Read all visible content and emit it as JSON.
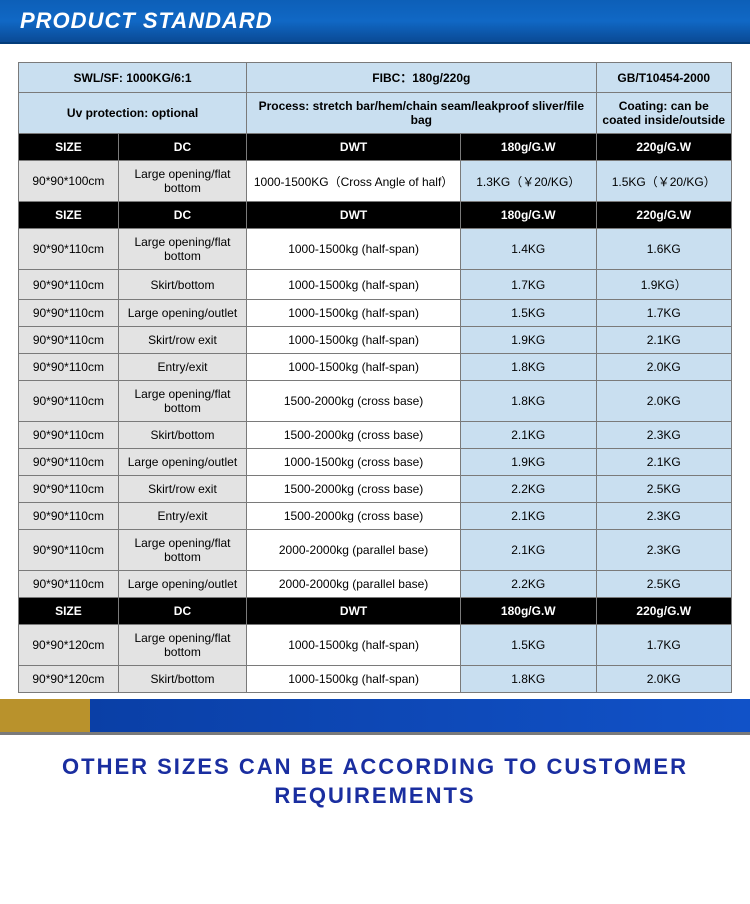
{
  "title": "PRODUCT STANDARD",
  "topHeader": {
    "col1": "SWL/SF: 1000KG/6:1",
    "col2": "FIBC：180g/220g",
    "col3": "GB/T10454-2000"
  },
  "subHeader": {
    "col1": "Uv protection: optional",
    "col2": "Process: stretch bar/hem/chain seam/leakproof sliver/file bag",
    "col3": "Coating: can be coated inside/outside"
  },
  "colHeaders": {
    "size": "SIZE",
    "dc": "DC",
    "dwt": "DWT",
    "w180": "180g/G.W",
    "w220": "220g/G.W"
  },
  "section1": [
    {
      "size": "90*90*100cm",
      "dc": "Large opening/flat bottom",
      "dwt": "1000-1500KG（Cross Angle of half）",
      "w180": "1.3KG（￥20/KG）",
      "w220": "1.5KG（￥20/KG）"
    }
  ],
  "section2": [
    {
      "size": "90*90*110cm",
      "dc": "Large opening/flat bottom",
      "dwt": "1000-1500kg (half-span)",
      "w180": "1.4KG",
      "w220": "1.6KG"
    },
    {
      "size": "90*90*110cm",
      "dc": "Skirt/bottom",
      "dwt": "1000-1500kg (half-span)",
      "w180": "1.7KG",
      "w220": "1.9KG）"
    },
    {
      "size": "90*90*110cm",
      "dc": "Large opening/outlet",
      "dwt": "1000-1500kg (half-span)",
      "w180": "1.5KG",
      "w220": "1.7KG"
    },
    {
      "size": "90*90*110cm",
      "dc": "Skirt/row exit",
      "dwt": "1000-1500kg (half-span)",
      "w180": "1.9KG",
      "w220": "2.1KG"
    },
    {
      "size": "90*90*110cm",
      "dc": "Entry/exit",
      "dwt": "1000-1500kg (half-span)",
      "w180": "1.8KG",
      "w220": "2.0KG"
    },
    {
      "size": "90*90*110cm",
      "dc": "Large opening/flat bottom",
      "dwt": "1500-2000kg (cross base)",
      "w180": "1.8KG",
      "w220": "2.0KG"
    },
    {
      "size": "90*90*110cm",
      "dc": "Skirt/bottom",
      "dwt": "1500-2000kg (cross base)",
      "w180": "2.1KG",
      "w220": "2.3KG"
    },
    {
      "size": "90*90*110cm",
      "dc": "Large opening/outlet",
      "dwt": "1000-1500kg (cross base)",
      "w180": "1.9KG",
      "w220": "2.1KG"
    },
    {
      "size": "90*90*110cm",
      "dc": "Skirt/row exit",
      "dwt": "1500-2000kg (cross base)",
      "w180": "2.2KG",
      "w220": "2.5KG"
    },
    {
      "size": "90*90*110cm",
      "dc": "Entry/exit",
      "dwt": "1500-2000kg (cross base)",
      "w180": "2.1KG",
      "w220": "2.3KG"
    },
    {
      "size": "90*90*110cm",
      "dc": "Large opening/flat bottom",
      "dwt": "2000-2000kg (parallel base)",
      "w180": "2.1KG",
      "w220": "2.3KG"
    },
    {
      "size": "90*90*110cm",
      "dc": "Large opening/outlet",
      "dwt": "2000-2000kg (parallel base)",
      "w180": "2.2KG",
      "w220": "2.5KG"
    }
  ],
  "section3": [
    {
      "size": "90*90*120cm",
      "dc": "Large opening/flat bottom",
      "dwt": "1000-1500kg (half-span)",
      "w180": "1.5KG",
      "w220": "1.7KG"
    },
    {
      "size": "90*90*120cm",
      "dc": "Skirt/bottom",
      "dwt": "1000-1500kg (half-span)",
      "w180": "1.8KG",
      "w220": "2.0KG"
    }
  ],
  "bottomText": "OTHER SIZES CAN BE ACCORDING TO CUSTOMER REQUIREMENTS",
  "colors": {
    "titleGradTop": "#0d5fb8",
    "titleGradBottom": "#0a4a95",
    "headerBlue": "#c9dff0",
    "headerBlack": "#000000",
    "cellGray": "#e3e3e3",
    "border": "#7a7a7a",
    "footerGold": "#b9922c",
    "footerBlue": "#1152c8",
    "bottomTextColor": "#1a2ea0"
  },
  "colWidths": [
    "14%",
    "18%",
    "30%",
    "19%",
    "19%"
  ]
}
